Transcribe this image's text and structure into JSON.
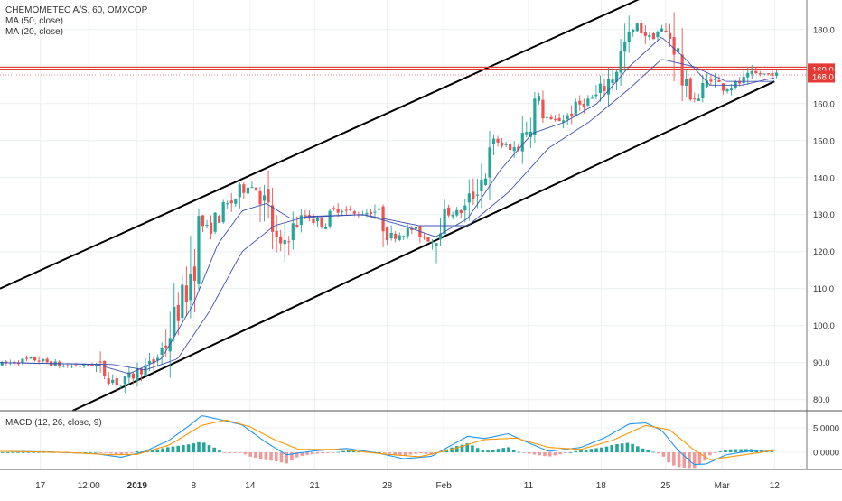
{
  "header": {
    "symbol_line": "CHEMOMETEC A/S, 60, OMXCOP",
    "ma50_label": "MA (50, close)",
    "ma20_label": "MA (20, close)",
    "macd_label": "MACD (12, 26, close, 9)"
  },
  "colors": {
    "up": "#26a69a",
    "down": "#ef5350",
    "ma": "#3f51b5",
    "macd_line": "#2196f3",
    "signal_line": "#ff9800",
    "hist_up": "#26a69a",
    "hist_down": "#ef9a9a",
    "channel": "#000000",
    "resistance": "#e53935",
    "grid": "#eceff1"
  },
  "chart_data": [
    {
      "type": "candlestick",
      "title": "CHEMOMETEC A/S, 60, OMXCOP",
      "xlabel": "",
      "ylabel": "",
      "ylim": [
        77,
        188
      ],
      "y_ticks": [
        80,
        90,
        100,
        110,
        120,
        130,
        140,
        150,
        160,
        170,
        180
      ],
      "y_tick_labels": [
        "80.0",
        "90.0",
        "100.0",
        "110.0",
        "120.0",
        "130.0",
        "140.0",
        "150.0",
        "160.0",
        "170.0",
        "180.0"
      ],
      "x_tick_labels": [
        "17",
        "12:00",
        "2019",
        "8",
        "14",
        "21",
        "28",
        "Feb",
        "11",
        "18",
        "25",
        "Mar",
        "12"
      ],
      "x_tick_positions": [
        0.05,
        0.11,
        0.17,
        0.24,
        0.31,
        0.39,
        0.48,
        0.55,
        0.655,
        0.745,
        0.825,
        0.895,
        0.96
      ],
      "price_path": [
        {
          "t": 0.0,
          "p": 89.5
        },
        {
          "t": 0.04,
          "p": 91
        },
        {
          "t": 0.08,
          "p": 89
        },
        {
          "t": 0.12,
          "p": 89.5
        },
        {
          "t": 0.135,
          "p": 86
        },
        {
          "t": 0.15,
          "p": 84
        },
        {
          "t": 0.17,
          "p": 87.5
        },
        {
          "t": 0.19,
          "p": 90
        },
        {
          "t": 0.205,
          "p": 95
        },
        {
          "t": 0.22,
          "p": 104
        },
        {
          "t": 0.235,
          "p": 112
        },
        {
          "t": 0.245,
          "p": 128
        },
        {
          "t": 0.26,
          "p": 126
        },
        {
          "t": 0.275,
          "p": 131
        },
        {
          "t": 0.29,
          "p": 134
        },
        {
          "t": 0.305,
          "p": 138
        },
        {
          "t": 0.32,
          "p": 137
        },
        {
          "t": 0.335,
          "p": 129
        },
        {
          "t": 0.345,
          "p": 120
        },
        {
          "t": 0.36,
          "p": 126
        },
        {
          "t": 0.38,
          "p": 130
        },
        {
          "t": 0.4,
          "p": 127
        },
        {
          "t": 0.42,
          "p": 132
        },
        {
          "t": 0.44,
          "p": 130
        },
        {
          "t": 0.465,
          "p": 131
        },
        {
          "t": 0.485,
          "p": 124
        },
        {
          "t": 0.51,
          "p": 126
        },
        {
          "t": 0.535,
          "p": 123
        },
        {
          "t": 0.55,
          "p": 130
        },
        {
          "t": 0.575,
          "p": 131
        },
        {
          "t": 0.6,
          "p": 141
        },
        {
          "t": 0.615,
          "p": 150
        },
        {
          "t": 0.635,
          "p": 147
        },
        {
          "t": 0.65,
          "p": 152
        },
        {
          "t": 0.665,
          "p": 162
        },
        {
          "t": 0.68,
          "p": 155
        },
        {
          "t": 0.7,
          "p": 156
        },
        {
          "t": 0.72,
          "p": 160
        },
        {
          "t": 0.74,
          "p": 162
        },
        {
          "t": 0.76,
          "p": 168
        },
        {
          "t": 0.775,
          "p": 176
        },
        {
          "t": 0.79,
          "p": 181
        },
        {
          "t": 0.805,
          "p": 178
        },
        {
          "t": 0.82,
          "p": 180
        },
        {
          "t": 0.835,
          "p": 177
        },
        {
          "t": 0.85,
          "p": 163
        },
        {
          "t": 0.865,
          "p": 161
        },
        {
          "t": 0.88,
          "p": 167
        },
        {
          "t": 0.9,
          "p": 164
        },
        {
          "t": 0.92,
          "p": 166
        },
        {
          "t": 0.935,
          "p": 168
        },
        {
          "t": 0.96,
          "p": 168
        }
      ],
      "ma_fast_path": [
        {
          "t": 0.0,
          "p": 90
        },
        {
          "t": 0.12,
          "p": 89.5
        },
        {
          "t": 0.16,
          "p": 87
        },
        {
          "t": 0.2,
          "p": 91
        },
        {
          "t": 0.24,
          "p": 106
        },
        {
          "t": 0.27,
          "p": 122
        },
        {
          "t": 0.3,
          "p": 131
        },
        {
          "t": 0.33,
          "p": 133
        },
        {
          "t": 0.36,
          "p": 129
        },
        {
          "t": 0.4,
          "p": 129.5
        },
        {
          "t": 0.45,
          "p": 130
        },
        {
          "t": 0.5,
          "p": 127
        },
        {
          "t": 0.54,
          "p": 124
        },
        {
          "t": 0.58,
          "p": 129
        },
        {
          "t": 0.62,
          "p": 142
        },
        {
          "t": 0.66,
          "p": 152
        },
        {
          "t": 0.7,
          "p": 155
        },
        {
          "t": 0.74,
          "p": 160
        },
        {
          "t": 0.78,
          "p": 170
        },
        {
          "t": 0.82,
          "p": 178
        },
        {
          "t": 0.85,
          "p": 172
        },
        {
          "t": 0.88,
          "p": 165
        },
        {
          "t": 0.92,
          "p": 165
        },
        {
          "t": 0.96,
          "p": 167
        }
      ],
      "ma_slow_path": [
        {
          "t": 0.0,
          "p": 90
        },
        {
          "t": 0.14,
          "p": 89.5
        },
        {
          "t": 0.18,
          "p": 88
        },
        {
          "t": 0.22,
          "p": 91
        },
        {
          "t": 0.26,
          "p": 104
        },
        {
          "t": 0.3,
          "p": 120
        },
        {
          "t": 0.34,
          "p": 127
        },
        {
          "t": 0.38,
          "p": 129.5
        },
        {
          "t": 0.45,
          "p": 130
        },
        {
          "t": 0.52,
          "p": 127
        },
        {
          "t": 0.58,
          "p": 127
        },
        {
          "t": 0.63,
          "p": 136
        },
        {
          "t": 0.68,
          "p": 148
        },
        {
          "t": 0.73,
          "p": 155
        },
        {
          "t": 0.78,
          "p": 164
        },
        {
          "t": 0.82,
          "p": 172
        },
        {
          "t": 0.86,
          "p": 170
        },
        {
          "t": 0.9,
          "p": 166
        },
        {
          "t": 0.96,
          "p": 166
        }
      ],
      "channel_upper": [
        {
          "t": 0.0,
          "p": 110
        },
        {
          "t": 0.8,
          "p": 189
        }
      ],
      "channel_lower": [
        {
          "t": 0.09,
          "p": 77
        },
        {
          "t": 0.96,
          "p": 166
        }
      ],
      "resistance_level": 169.6,
      "price_labels": [
        {
          "value": 169.0,
          "label": "169.0"
        },
        {
          "value": 168.0,
          "label": "168.0"
        }
      ]
    },
    {
      "type": "macd",
      "title": "MACD (12, 26, close, 9)",
      "ylim": [
        -3.5,
        8.5
      ],
      "y_ticks": [
        5.0,
        0.0
      ],
      "y_tick_labels": [
        "5.0000",
        "0.0000"
      ],
      "macd_path": [
        {
          "t": 0.0,
          "p": 0.2
        },
        {
          "t": 0.06,
          "p": 0.1
        },
        {
          "t": 0.12,
          "p": -0.3
        },
        {
          "t": 0.15,
          "p": -1.0
        },
        {
          "t": 0.18,
          "p": 0.2
        },
        {
          "t": 0.21,
          "p": 2.5
        },
        {
          "t": 0.235,
          "p": 5.5
        },
        {
          "t": 0.25,
          "p": 7.5
        },
        {
          "t": 0.27,
          "p": 6.8
        },
        {
          "t": 0.3,
          "p": 5.6
        },
        {
          "t": 0.33,
          "p": 2.0
        },
        {
          "t": 0.355,
          "p": -0.5
        },
        {
          "t": 0.39,
          "p": 0.3
        },
        {
          "t": 0.43,
          "p": 0.8
        },
        {
          "t": 0.47,
          "p": -0.2
        },
        {
          "t": 0.5,
          "p": -1.3
        },
        {
          "t": 0.535,
          "p": -0.8
        },
        {
          "t": 0.56,
          "p": 1.5
        },
        {
          "t": 0.58,
          "p": 3.3
        },
        {
          "t": 0.6,
          "p": 2.8
        },
        {
          "t": 0.63,
          "p": 3.8
        },
        {
          "t": 0.65,
          "p": 2.3
        },
        {
          "t": 0.68,
          "p": 0.2
        },
        {
          "t": 0.72,
          "p": 1.0
        },
        {
          "t": 0.75,
          "p": 3.0
        },
        {
          "t": 0.78,
          "p": 5.8
        },
        {
          "t": 0.8,
          "p": 6.0
        },
        {
          "t": 0.82,
          "p": 4.5
        },
        {
          "t": 0.84,
          "p": 0.5
        },
        {
          "t": 0.86,
          "p": -2.5
        },
        {
          "t": 0.875,
          "p": -2.4
        },
        {
          "t": 0.9,
          "p": -0.5
        },
        {
          "t": 0.93,
          "p": 0.3
        },
        {
          "t": 0.96,
          "p": 0.5
        }
      ],
      "signal_path": [
        {
          "t": 0.0,
          "p": 0.2
        },
        {
          "t": 0.08,
          "p": 0.0
        },
        {
          "t": 0.14,
          "p": -0.5
        },
        {
          "t": 0.17,
          "p": -0.4
        },
        {
          "t": 0.21,
          "p": 1.5
        },
        {
          "t": 0.25,
          "p": 5.5
        },
        {
          "t": 0.28,
          "p": 6.6
        },
        {
          "t": 0.31,
          "p": 5.2
        },
        {
          "t": 0.34,
          "p": 2.6
        },
        {
          "t": 0.37,
          "p": 0.6
        },
        {
          "t": 0.42,
          "p": 0.6
        },
        {
          "t": 0.48,
          "p": -0.4
        },
        {
          "t": 0.52,
          "p": -0.9
        },
        {
          "t": 0.56,
          "p": 0.6
        },
        {
          "t": 0.6,
          "p": 2.6
        },
        {
          "t": 0.64,
          "p": 2.9
        },
        {
          "t": 0.68,
          "p": 1.0
        },
        {
          "t": 0.72,
          "p": 0.6
        },
        {
          "t": 0.76,
          "p": 2.5
        },
        {
          "t": 0.8,
          "p": 5.5
        },
        {
          "t": 0.83,
          "p": 4.6
        },
        {
          "t": 0.86,
          "p": 0.5
        },
        {
          "t": 0.88,
          "p": -1.5
        },
        {
          "t": 0.91,
          "p": -0.8
        },
        {
          "t": 0.96,
          "p": 0.4
        }
      ]
    }
  ]
}
